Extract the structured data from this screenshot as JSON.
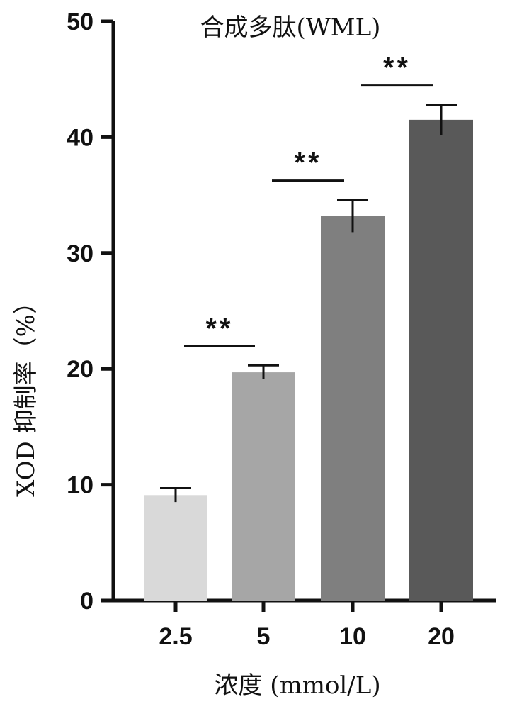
{
  "chart_data": {
    "type": "bar",
    "title": "合成多肽(WML)",
    "xlabel": "浓度 (mmol/L)",
    "ylabel": "XOD 抑制率（%）",
    "categories": [
      "2.5",
      "5",
      "10",
      "20"
    ],
    "values": [
      9.1,
      19.7,
      33.2,
      41.5
    ],
    "errors": [
      0.6,
      0.6,
      1.4,
      1.3
    ],
    "bar_colors": [
      "#d9d9d9",
      "#a6a6a6",
      "#7f7f7f",
      "#595959"
    ],
    "ylim": [
      0,
      50
    ],
    "yticks": [
      "0",
      "10",
      "20",
      "30",
      "40",
      "50"
    ],
    "grid": false,
    "significance": [
      {
        "label": "**",
        "from": "2.5",
        "to": "5"
      },
      {
        "label": "**",
        "from": "5",
        "to": "10"
      },
      {
        "label": "**",
        "from": "10",
        "to": "20"
      }
    ]
  }
}
